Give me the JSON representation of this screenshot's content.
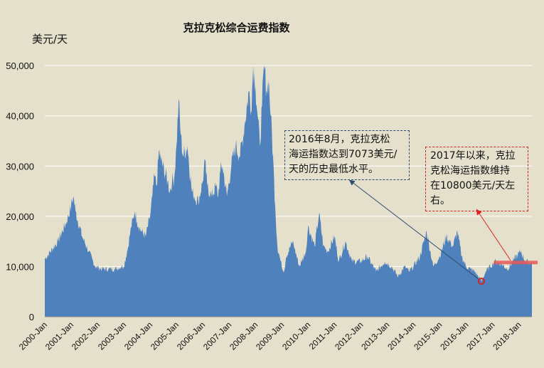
{
  "chart_data": {
    "type": "area",
    "title": "克拉克松综合运费指数",
    "ylabel": "美元/天",
    "xlabel": "",
    "ylim": [
      0,
      52000
    ],
    "yticks": [
      0,
      10000,
      20000,
      30000,
      40000,
      50000
    ],
    "ytick_labels": [
      "0",
      "10,000",
      "20,000",
      "30,000",
      "40,000",
      "50,000"
    ],
    "xtick_labels": [
      "2000-Jan",
      "2001-Jan",
      "2002-Jan",
      "2003-Jan",
      "2004-Jan",
      "2005-Jan",
      "2006-Jan",
      "2007-Jan",
      "2008-Jan",
      "2009-Jan",
      "2010-Jan",
      "2011-Jan",
      "2012-Jan",
      "2013-Jan",
      "2014-Jan",
      "2015-Jan",
      "2016-Jan",
      "2017-Jan",
      "2018-Jan"
    ],
    "x_start": "2000-Jan",
    "x_end": "2018-Jul",
    "grid": true,
    "fill_color": "#4f81bd",
    "series": [
      {
        "x": [
          "2000-Jan",
          "2000-Jul",
          "2000-Nov",
          "2001-Jan",
          "2001-Feb",
          "2001-Mar",
          "2001-Jun",
          "2001-Sep",
          "2001-Dec",
          "2002-Mar",
          "2002-Jun",
          "2002-Sep",
          "2002-Dec",
          "2003-Jan",
          "2003-Mar",
          "2003-Apr",
          "2003-Jun",
          "2003-Jul",
          "2003-Sep",
          "2003-Nov",
          "2004-Jan",
          "2004-Feb",
          "2004-Mar",
          "2004-Apr",
          "2004-May",
          "2004-Jun",
          "2004-Sep",
          "2004-Oct",
          "2004-Nov",
          "2004-Dec",
          "2005-Jan",
          "2005-Feb",
          "2005-Mar",
          "2005-Apr",
          "2005-Jun",
          "2005-Aug",
          "2005-Sep",
          "2005-Nov",
          "2006-Jan",
          "2006-Feb",
          "2006-Mar",
          "2006-May",
          "2006-Jul",
          "2006-Aug",
          "2006-Sep",
          "2006-Oct",
          "2006-Dec",
          "2007-Feb",
          "2007-Apr",
          "2007-Jun",
          "2007-Aug",
          "2007-Oct",
          "2007-Nov",
          "2007-Dec",
          "2008-Jan",
          "2008-Feb",
          "2008-Mar",
          "2008-Apr",
          "2008-May",
          "2008-Jun",
          "2008-Jul",
          "2008-Aug",
          "2008-Sep",
          "2008-Oct",
          "2008-Nov",
          "2008-Dec",
          "2009-Jan",
          "2009-Feb",
          "2009-Mar",
          "2009-Jun",
          "2009-Sep",
          "2009-Dec",
          "2010-Jan",
          "2010-Apr",
          "2010-Jun",
          "2010-Aug",
          "2010-Oct",
          "2011-Jan",
          "2011-Mar",
          "2011-Jun",
          "2011-Sep",
          "2012-Jan",
          "2012-Apr",
          "2012-Aug",
          "2012-Dec",
          "2013-Mar",
          "2013-Jun",
          "2013-Sep",
          "2013-Nov",
          "2014-Jan",
          "2014-Apr",
          "2014-Jul",
          "2014-Oct",
          "2015-Jan",
          "2015-Apr",
          "2015-Jul",
          "2015-Sep",
          "2015-Nov",
          "2016-Jan",
          "2016-Mar",
          "2016-May",
          "2016-Aug",
          "2016-Oct",
          "2016-Dec",
          "2017-Feb",
          "2017-May",
          "2017-Aug",
          "2017-Nov",
          "2018-Feb",
          "2018-Apr",
          "2018-Jul"
        ],
        "values": [
          11500,
          15000,
          19000,
          22000,
          24000,
          21000,
          16000,
          13000,
          10000,
          9500,
          9500,
          9500,
          10000,
          10000,
          14000,
          17000,
          21000,
          19000,
          17000,
          16000,
          20000,
          24000,
          28000,
          26000,
          33000,
          31000,
          27000,
          25000,
          27000,
          27500,
          34000,
          43000,
          36000,
          32000,
          34000,
          25000,
          24000,
          23000,
          27000,
          31000,
          26000,
          24000,
          26000,
          24000,
          29000,
          30000,
          24000,
          30000,
          34000,
          32000,
          38000,
          45000,
          41000,
          50000,
          46000,
          40000,
          34000,
          42000,
          50000,
          45000,
          47000,
          40000,
          32000,
          22000,
          14000,
          12000,
          10000,
          9000,
          12000,
          15000,
          10000,
          13000,
          18000,
          14000,
          20500,
          14000,
          13000,
          16000,
          11000,
          15000,
          11000,
          11000,
          12000,
          9000,
          11000,
          10000,
          8000,
          10000,
          9000,
          10000,
          12000,
          17000,
          10000,
          12000,
          16000,
          14000,
          17000,
          12000,
          10000,
          9500,
          9000,
          7073,
          9000,
          10000,
          11000,
          10500,
          9500,
          11500,
          13000,
          11000,
          10800
        ]
      }
    ],
    "annotations": [
      {
        "text": "2016年8月，克拉克松\n海运指数达到7073美元/\n天的历史最低水平。",
        "x": "2016-Aug",
        "y": 7073
      },
      {
        "text": "2017年以来，克拉\n克松海运指数维持\n在10800美元/天左\n右。",
        "level": 10800
      }
    ],
    "marker_color": "#d42020",
    "arrow1_color": "#2e4d6e",
    "arrow2_color": "#e02020",
    "level_line_color": "#e85a5a"
  }
}
